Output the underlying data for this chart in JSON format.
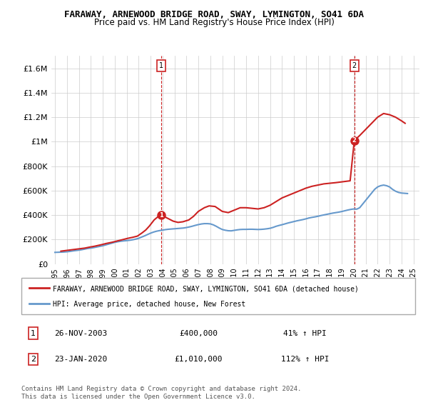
{
  "title": "FARAWAY, ARNEWOOD BRIDGE ROAD, SWAY, LYMINGTON, SO41 6DA",
  "subtitle": "Price paid vs. HM Land Registry's House Price Index (HPI)",
  "ylabel_ticks": [
    "£0",
    "£200K",
    "£400K",
    "£600K",
    "£800K",
    "£1M",
    "£1.2M",
    "£1.4M",
    "£1.6M"
  ],
  "ylabel_values": [
    0,
    200000,
    400000,
    600000,
    800000,
    1000000,
    1200000,
    1400000,
    1600000
  ],
  "ylim": [
    0,
    1700000
  ],
  "xlim_start": 1995.0,
  "xlim_end": 2025.5,
  "xticks": [
    1995,
    1996,
    1997,
    1998,
    1999,
    2000,
    2001,
    2002,
    2003,
    2004,
    2005,
    2006,
    2007,
    2008,
    2009,
    2010,
    2011,
    2012,
    2013,
    2014,
    2015,
    2016,
    2017,
    2018,
    2019,
    2020,
    2021,
    2022,
    2023,
    2024,
    2025
  ],
  "hpi_color": "#6699cc",
  "price_color": "#cc2222",
  "marker1_date": 2003.9,
  "marker1_value": 400000,
  "marker1_label": "1",
  "marker2_date": 2020.05,
  "marker2_value": 1010000,
  "marker2_label": "2",
  "vline1_x": 2003.9,
  "vline2_x": 2020.05,
  "legend_line1": "FARAWAY, ARNEWOOD BRIDGE ROAD, SWAY, LYMINGTON, SO41 6DA (detached house)",
  "legend_line2": "HPI: Average price, detached house, New Forest",
  "annotation1_num": "1",
  "annotation1_date": "26-NOV-2003",
  "annotation1_price": "£400,000",
  "annotation1_hpi": "41% ↑ HPI",
  "annotation2_num": "2",
  "annotation2_date": "23-JAN-2020",
  "annotation2_price": "£1,010,000",
  "annotation2_hpi": "112% ↑ HPI",
  "footer": "Contains HM Land Registry data © Crown copyright and database right 2024.\nThis data is licensed under the Open Government Licence v3.0.",
  "hpi_data_x": [
    1995.0,
    1995.25,
    1995.5,
    1995.75,
    1996.0,
    1996.25,
    1996.5,
    1996.75,
    1997.0,
    1997.25,
    1997.5,
    1997.75,
    1998.0,
    1998.25,
    1998.5,
    1998.75,
    1999.0,
    1999.25,
    1999.5,
    1999.75,
    2000.0,
    2000.25,
    2000.5,
    2000.75,
    2001.0,
    2001.25,
    2001.5,
    2001.75,
    2002.0,
    2002.25,
    2002.5,
    2002.75,
    2003.0,
    2003.25,
    2003.5,
    2003.75,
    2004.0,
    2004.25,
    2004.5,
    2004.75,
    2005.0,
    2005.25,
    2005.5,
    2005.75,
    2006.0,
    2006.25,
    2006.5,
    2006.75,
    2007.0,
    2007.25,
    2007.5,
    2007.75,
    2008.0,
    2008.25,
    2008.5,
    2008.75,
    2009.0,
    2009.25,
    2009.5,
    2009.75,
    2010.0,
    2010.25,
    2010.5,
    2010.75,
    2011.0,
    2011.25,
    2011.5,
    2011.75,
    2012.0,
    2012.25,
    2012.5,
    2012.75,
    2013.0,
    2013.25,
    2013.5,
    2013.75,
    2014.0,
    2014.25,
    2014.5,
    2014.75,
    2015.0,
    2015.25,
    2015.5,
    2015.75,
    2016.0,
    2016.25,
    2016.5,
    2016.75,
    2017.0,
    2017.25,
    2017.5,
    2017.75,
    2018.0,
    2018.25,
    2018.5,
    2018.75,
    2019.0,
    2019.25,
    2019.5,
    2019.75,
    2020.0,
    2020.25,
    2020.5,
    2020.75,
    2021.0,
    2021.25,
    2021.5,
    2021.75,
    2022.0,
    2022.25,
    2022.5,
    2022.75,
    2023.0,
    2023.25,
    2023.5,
    2023.75,
    2024.0,
    2024.25,
    2024.5
  ],
  "hpi_data_y": [
    95000,
    96000,
    97000,
    98000,
    100000,
    103000,
    107000,
    110000,
    113000,
    117000,
    122000,
    127000,
    130000,
    134000,
    139000,
    144000,
    149000,
    156000,
    163000,
    170000,
    177000,
    182000,
    186000,
    189000,
    191000,
    194000,
    198000,
    203000,
    210000,
    220000,
    230000,
    241000,
    252000,
    261000,
    268000,
    273000,
    277000,
    281000,
    284000,
    286000,
    288000,
    290000,
    292000,
    294000,
    298000,
    303000,
    309000,
    316000,
    322000,
    327000,
    330000,
    330000,
    328000,
    320000,
    308000,
    294000,
    282000,
    276000,
    272000,
    271000,
    275000,
    279000,
    282000,
    283000,
    283000,
    284000,
    284000,
    283000,
    282000,
    283000,
    285000,
    288000,
    292000,
    299000,
    308000,
    315000,
    321000,
    328000,
    335000,
    341000,
    347000,
    353000,
    358000,
    363000,
    369000,
    376000,
    381000,
    385000,
    390000,
    396000,
    401000,
    406000,
    411000,
    416000,
    420000,
    424000,
    429000,
    435000,
    441000,
    446000,
    450000,
    448000,
    460000,
    490000,
    520000,
    550000,
    580000,
    610000,
    630000,
    640000,
    645000,
    640000,
    630000,
    610000,
    595000,
    585000,
    580000,
    578000,
    576000
  ],
  "price_data_x": [
    1995.5,
    1996.3,
    1997.1,
    1997.5,
    1997.9,
    1998.3,
    1998.9,
    1999.3,
    1999.8,
    2000.2,
    2000.7,
    2001.1,
    2001.5,
    2001.9,
    2002.3,
    2002.6,
    2002.9,
    2003.3,
    2003.6,
    2003.9,
    2004.5,
    2004.9,
    2005.3,
    2005.7,
    2006.2,
    2006.6,
    2007.0,
    2007.5,
    2007.9,
    2008.4,
    2009.0,
    2009.5,
    2010.0,
    2010.5,
    2011.0,
    2011.5,
    2012.0,
    2012.5,
    2013.0,
    2013.5,
    2014.0,
    2014.5,
    2015.0,
    2015.5,
    2016.0,
    2016.5,
    2017.0,
    2017.5,
    2018.0,
    2018.5,
    2018.9,
    2019.3,
    2019.7,
    2020.05,
    2020.5,
    2021.0,
    2021.5,
    2022.0,
    2022.5,
    2023.0,
    2023.5,
    2024.0,
    2024.3
  ],
  "price_data_y": [
    105000,
    115000,
    125000,
    130000,
    138000,
    145000,
    158000,
    168000,
    178000,
    188000,
    200000,
    210000,
    218000,
    228000,
    255000,
    278000,
    310000,
    360000,
    385000,
    400000,
    370000,
    350000,
    340000,
    345000,
    360000,
    390000,
    430000,
    460000,
    475000,
    470000,
    430000,
    420000,
    440000,
    460000,
    460000,
    455000,
    450000,
    460000,
    480000,
    510000,
    540000,
    560000,
    580000,
    600000,
    620000,
    635000,
    645000,
    655000,
    660000,
    665000,
    670000,
    675000,
    680000,
    1010000,
    1050000,
    1100000,
    1150000,
    1200000,
    1230000,
    1220000,
    1200000,
    1170000,
    1150000
  ]
}
